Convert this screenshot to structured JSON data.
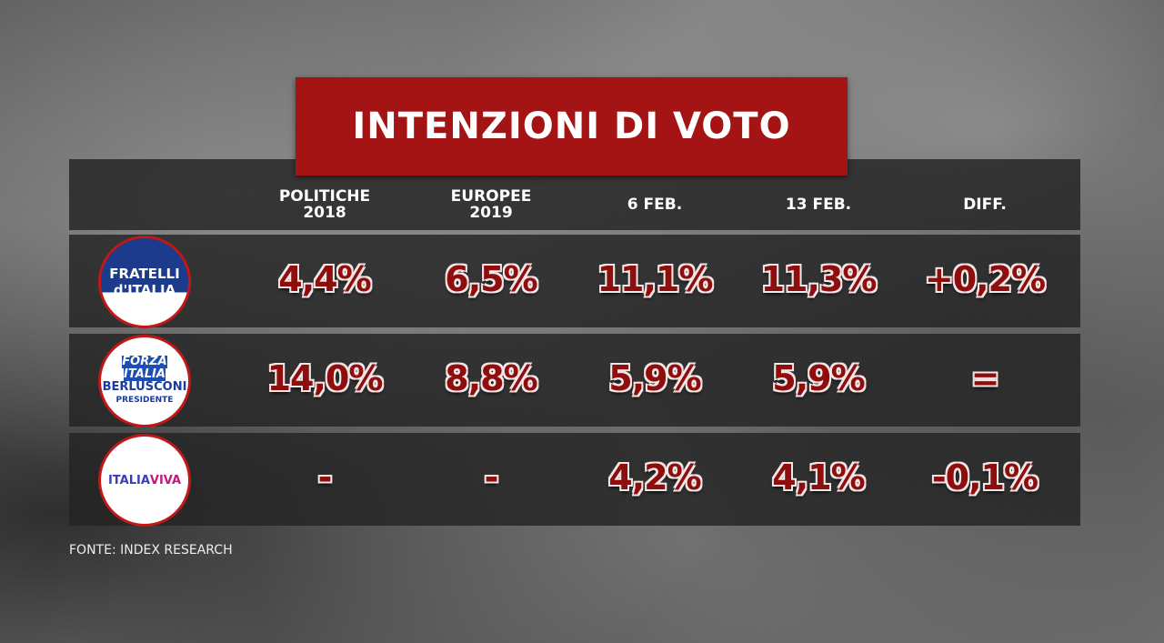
{
  "title": "INTENZIONI DI VOTO",
  "table": {
    "header": [
      [
        "POLITICHE",
        "2018"
      ],
      [
        "EUROPEE",
        "2019"
      ],
      [
        "6 FEB."
      ],
      [
        "13 FEB."
      ],
      [
        "DIFF."
      ]
    ],
    "rows": [
      {
        "logo": [
          "FRATELLI",
          "d'ITALIA"
        ],
        "cells": [
          "4,4%",
          "6,5%",
          "11,1%",
          "11,3%",
          "+0,2%"
        ]
      },
      {
        "logo": [
          "FORZA",
          "ITALIA",
          "BERLUSCONI",
          "PRESIDENTE"
        ],
        "cells": [
          "14,0%",
          "8,8%",
          "5,9%",
          "5,9%",
          "="
        ]
      },
      {
        "logo": [
          "ITALIA",
          "VIVA"
        ],
        "cells": [
          "-",
          "-",
          "4,2%",
          "4,1%",
          "-0,1%"
        ]
      }
    ]
  },
  "source": "FONTE: INDEX RESEARCH"
}
